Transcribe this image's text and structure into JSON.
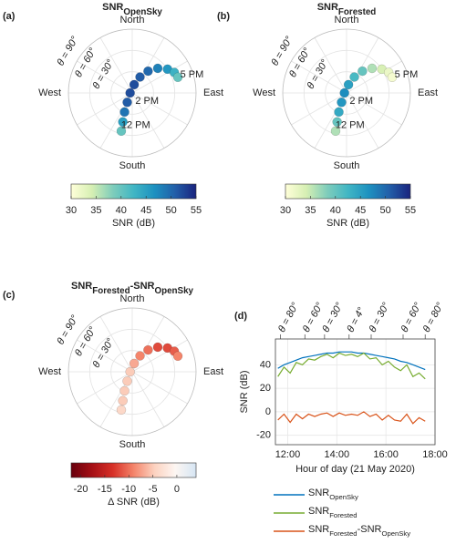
{
  "chart_data": [
    {
      "type": "polar",
      "panel": "(a)",
      "title_parts": [
        "SNR",
        "OpenSky"
      ],
      "directions": [
        "North",
        "East",
        "South",
        "West"
      ],
      "rlim": [
        0,
        90
      ],
      "rticks": [
        {
          "value": 30,
          "label": "θ = 30°"
        },
        {
          "value": 60,
          "label": "θ = 60°"
        },
        {
          "value": 90,
          "label": "θ = 90°"
        }
      ],
      "azimuth": [
        196,
        198,
        202,
        208,
        270,
        13,
        26,
        36,
        46,
        56,
        64,
        71
      ],
      "zenith": [
        56,
        43,
        29,
        15,
        3,
        12,
        25,
        38,
        50,
        60,
        66,
        68
      ],
      "values": [
        40,
        45,
        49,
        51,
        52,
        52,
        51,
        50,
        48,
        46,
        43,
        40
      ],
      "annotations": [
        {
          "text": "12 PM",
          "azimuth": 174,
          "zenith": 46
        },
        {
          "text": "2 PM",
          "azimuth": 120,
          "zenith": 24
        },
        {
          "text": "5 PM",
          "azimuth": 73,
          "zenith": 88
        }
      ],
      "colormap": [
        "#ffffd9",
        "#d6efb3",
        "#7fcdbb",
        "#41b6c4",
        "#1d91c0",
        "#225ea8",
        "#1a237e"
      ],
      "clim": [
        30,
        55
      ],
      "cticks": [
        30,
        35,
        40,
        45,
        50,
        55
      ],
      "clabel": "SNR (dB)"
    },
    {
      "type": "polar",
      "panel": "(b)",
      "title_parts": [
        "SNR",
        "Forested"
      ],
      "directions": [
        "North",
        "East",
        "South",
        "West"
      ],
      "rlim": [
        0,
        90
      ],
      "rticks": [
        {
          "value": 30,
          "label": "θ = 30°"
        },
        {
          "value": 60,
          "label": "θ = 60°"
        },
        {
          "value": 90,
          "label": "θ = 90°"
        }
      ],
      "azimuth": [
        196,
        198,
        202,
        208,
        270,
        13,
        26,
        36,
        46,
        56,
        64,
        71
      ],
      "zenith": [
        56,
        43,
        29,
        15,
        3,
        12,
        25,
        38,
        50,
        60,
        66,
        68
      ],
      "values": [
        36,
        40,
        44,
        46,
        47,
        45,
        42,
        40,
        36,
        34,
        32,
        31
      ],
      "annotations": [
        {
          "text": "12 PM",
          "azimuth": 174,
          "zenith": 46
        },
        {
          "text": "2 PM",
          "azimuth": 120,
          "zenith": 24
        },
        {
          "text": "5 PM",
          "azimuth": 73,
          "zenith": 88
        }
      ],
      "colormap": [
        "#ffffd9",
        "#d6efb3",
        "#7fcdbb",
        "#41b6c4",
        "#1d91c0",
        "#225ea8",
        "#1a237e"
      ],
      "clim": [
        30,
        55
      ],
      "cticks": [
        30,
        35,
        40,
        45,
        50,
        55
      ],
      "clabel": "SNR (dB)"
    },
    {
      "type": "polar",
      "panel": "(c)",
      "title_parts": [
        "SNR",
        "Forested",
        "-SNR",
        "OpenSky"
      ],
      "directions": [
        "North",
        "East",
        "South",
        "West"
      ],
      "rlim": [
        0,
        90
      ],
      "rticks": [
        {
          "value": 30,
          "label": "θ = 30°"
        },
        {
          "value": 60,
          "label": "θ = 60°"
        },
        {
          "value": 90,
          "label": "θ = 90°"
        }
      ],
      "azimuth": [
        196,
        198,
        202,
        208,
        270,
        13,
        26,
        36,
        46,
        56,
        64,
        71
      ],
      "zenith": [
        56,
        43,
        29,
        15,
        3,
        12,
        25,
        38,
        50,
        60,
        66,
        68
      ],
      "values": [
        -4,
        -5,
        -5,
        -5,
        -5,
        -7,
        -9,
        -10,
        -12,
        -12,
        -11,
        -9
      ],
      "annotations": [],
      "colormap": [
        "#67000d",
        "#a50f15",
        "#d73027",
        "#f4846a",
        "#fcd2c0",
        "#fdf6f2",
        "#d6e6f4"
      ],
      "clim": [
        -22,
        4
      ],
      "cticks": [
        -20,
        -15,
        -10,
        -5,
        0
      ],
      "clabel": "Δ SNR (dB)"
    },
    {
      "type": "line",
      "panel": "(d)",
      "x": [
        11.6,
        11.85,
        12.1,
        12.35,
        12.6,
        12.85,
        13.1,
        13.35,
        13.6,
        13.85,
        14.1,
        14.35,
        14.6,
        14.85,
        15.1,
        15.35,
        15.6,
        15.85,
        16.1,
        16.35,
        16.6,
        16.85,
        17.1,
        17.35,
        17.6
      ],
      "series": [
        {
          "name_parts": [
            "SNR",
            "OpenSky"
          ],
          "color": "#0072bd",
          "values": [
            37,
            40,
            42,
            44,
            46,
            47,
            48,
            49,
            50,
            50,
            51,
            51,
            51,
            50,
            50,
            49,
            48,
            47,
            46,
            45,
            43,
            42,
            40,
            38,
            36
          ]
        },
        {
          "name_parts": [
            "SNR",
            "Forested"
          ],
          "color": "#77ac30",
          "values": [
            30,
            38,
            33,
            42,
            40,
            45,
            44,
            47,
            49,
            46,
            50,
            48,
            49,
            47,
            50,
            45,
            46,
            40,
            43,
            38,
            35,
            40,
            30,
            33,
            28
          ]
        },
        {
          "name_parts": [
            "SNR",
            "Forested",
            "-SNR",
            "OpenSky"
          ],
          "color": "#d95319",
          "values": [
            -7,
            -2,
            -9,
            -2,
            -6,
            -2,
            -4,
            -2,
            -1,
            -4,
            -1,
            -3,
            -2,
            -3,
            0,
            -4,
            -2,
            -7,
            -3,
            -7,
            -8,
            -2,
            -10,
            -5,
            -8
          ]
        }
      ],
      "xlim": [
        11.5,
        18
      ],
      "ylim": [
        -28,
        62
      ],
      "xticks": [
        {
          "value": 12,
          "label": "12:00"
        },
        {
          "value": 14,
          "label": "14:00"
        },
        {
          "value": 16,
          "label": "16:00"
        },
        {
          "value": 18,
          "label": "18:00"
        }
      ],
      "x2ticks": [
        {
          "value": 11.7,
          "label": "θ = 80°"
        },
        {
          "value": 12.7,
          "label": "θ = 60°"
        },
        {
          "value": 13.5,
          "label": "θ = 30°"
        },
        {
          "value": 14.5,
          "label": "θ = 4°"
        },
        {
          "value": 15.4,
          "label": "θ = 30°"
        },
        {
          "value": 16.7,
          "label": "θ = 60°"
        },
        {
          "value": 17.6,
          "label": "θ = 80°"
        }
      ],
      "yticks": [
        -20,
        0,
        20,
        40
      ],
      "xlabel": "Hour of day (21 May 2020)",
      "ylabel": "SNR (dB)",
      "grid": true
    }
  ]
}
